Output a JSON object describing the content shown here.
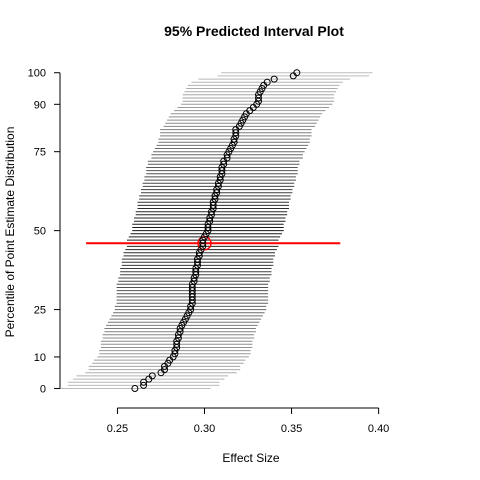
{
  "chart_data": {
    "type": "scatter",
    "title": "95% Predicted Interval Plot",
    "xlabel": "Effect Size",
    "ylabel": "Percentile of Point Estimate Distribution",
    "xlim": [
      0.217,
      0.441
    ],
    "ylim": [
      -3,
      101.5
    ],
    "xticks": [
      0.25,
      0.3,
      0.35,
      0.4
    ],
    "xtick_labels": [
      "0.25",
      "0.30",
      "0.35",
      "0.40"
    ],
    "yticks": [
      0,
      10,
      25,
      50,
      75,
      90,
      100
    ],
    "ytick_labels": [
      "0",
      "10",
      "25",
      "50",
      "75",
      "90",
      "100"
    ],
    "grid": false,
    "legend": "none",
    "series": [
      {
        "role": "percentile-estimates",
        "marker": "open-circle",
        "color": "#000000",
        "interval_halfwidth": 0.0435,
        "points": [
          [
            0.26,
            0
          ],
          [
            0.265,
            1
          ],
          [
            0.265,
            2
          ],
          [
            0.268,
            3
          ],
          [
            0.27,
            4
          ],
          [
            0.275,
            5
          ],
          [
            0.277,
            6
          ],
          [
            0.277,
            7
          ],
          [
            0.279,
            8
          ],
          [
            0.28,
            9
          ],
          [
            0.282,
            10
          ],
          [
            0.283,
            11
          ],
          [
            0.283,
            12
          ],
          [
            0.284,
            13
          ],
          [
            0.284,
            14
          ],
          [
            0.284,
            15
          ],
          [
            0.285,
            16
          ],
          [
            0.285,
            17
          ],
          [
            0.286,
            18
          ],
          [
            0.286,
            19
          ],
          [
            0.287,
            20
          ],
          [
            0.288,
            21
          ],
          [
            0.289,
            22
          ],
          [
            0.29,
            23
          ],
          [
            0.291,
            24
          ],
          [
            0.292,
            25
          ],
          [
            0.292,
            26
          ],
          [
            0.293,
            27
          ],
          [
            0.293,
            28
          ],
          [
            0.293,
            29
          ],
          [
            0.293,
            30
          ],
          [
            0.293,
            31
          ],
          [
            0.293,
            32
          ],
          [
            0.293,
            33
          ],
          [
            0.294,
            34
          ],
          [
            0.294,
            35
          ],
          [
            0.295,
            36
          ],
          [
            0.295,
            37
          ],
          [
            0.295,
            38
          ],
          [
            0.296,
            39
          ],
          [
            0.296,
            40
          ],
          [
            0.296,
            41
          ],
          [
            0.297,
            42
          ],
          [
            0.297,
            43
          ],
          [
            0.298,
            44
          ],
          [
            0.299,
            45
          ],
          [
            0.299,
            46
          ],
          [
            0.299,
            47
          ],
          [
            0.3,
            48
          ],
          [
            0.301,
            49
          ],
          [
            0.302,
            50
          ],
          [
            0.302,
            51
          ],
          [
            0.302,
            52
          ],
          [
            0.303,
            53
          ],
          [
            0.303,
            54
          ],
          [
            0.304,
            55
          ],
          [
            0.304,
            56
          ],
          [
            0.305,
            57
          ],
          [
            0.305,
            58
          ],
          [
            0.305,
            59
          ],
          [
            0.306,
            60
          ],
          [
            0.306,
            61
          ],
          [
            0.307,
            62
          ],
          [
            0.307,
            63
          ],
          [
            0.308,
            64
          ],
          [
            0.308,
            65
          ],
          [
            0.309,
            66
          ],
          [
            0.309,
            67
          ],
          [
            0.31,
            68
          ],
          [
            0.31,
            69
          ],
          [
            0.31,
            70
          ],
          [
            0.311,
            71
          ],
          [
            0.311,
            72
          ],
          [
            0.313,
            73
          ],
          [
            0.313,
            74
          ],
          [
            0.314,
            75
          ],
          [
            0.315,
            76
          ],
          [
            0.316,
            77
          ],
          [
            0.317,
            78
          ],
          [
            0.317,
            79
          ],
          [
            0.318,
            80
          ],
          [
            0.318,
            81
          ],
          [
            0.318,
            82
          ],
          [
            0.32,
            83
          ],
          [
            0.321,
            84
          ],
          [
            0.322,
            85
          ],
          [
            0.323,
            86
          ],
          [
            0.324,
            87
          ],
          [
            0.326,
            88
          ],
          [
            0.328,
            89
          ],
          [
            0.33,
            90
          ],
          [
            0.331,
            91
          ],
          [
            0.331,
            92
          ],
          [
            0.331,
            93
          ],
          [
            0.332,
            94
          ],
          [
            0.333,
            95
          ],
          [
            0.334,
            96
          ],
          [
            0.336,
            97
          ],
          [
            0.34,
            98
          ],
          [
            0.351,
            99
          ],
          [
            0.353,
            100
          ]
        ]
      },
      {
        "role": "point-estimate",
        "marker": "open-circle",
        "color": "#ff0000",
        "point": [
          0.3,
          46
        ],
        "interval": [
          0.232,
          0.378
        ]
      }
    ]
  }
}
